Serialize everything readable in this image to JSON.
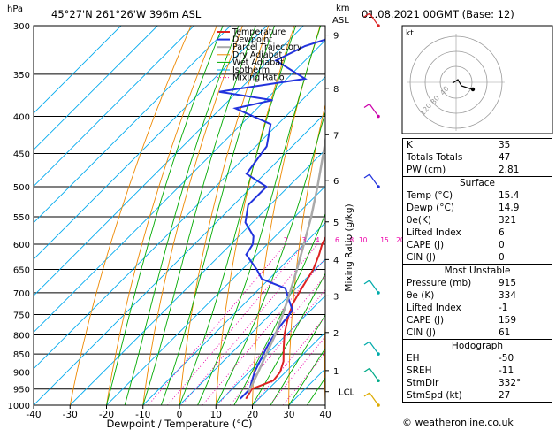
{
  "header": {
    "location": "45°27'N 261°26'W 396m ASL",
    "datetime": "01.08.2021 00GMT (Base: 12)"
  },
  "chart_data": {
    "type": "line",
    "title": "45°27'N 261°26'W 396m ASL",
    "xlabel": "Dewpoint / Temperature (°C)",
    "ylabel": "hPa",
    "ylabel_right": "Mixing Ratio (g/kg)",
    "km_label_top": "km",
    "km_label_bottom": "ASL",
    "xlim": [
      -40,
      40
    ],
    "ylim": [
      1000,
      300
    ],
    "x_ticks": [
      -40,
      -30,
      -20,
      -10,
      0,
      10,
      20,
      30,
      40
    ],
    "pressure_levels": [
      300,
      350,
      400,
      450,
      500,
      550,
      600,
      650,
      700,
      750,
      800,
      850,
      900,
      950,
      1000
    ],
    "km_ticks": [
      {
        "label": "9",
        "p": 309
      },
      {
        "label": "8",
        "p": 366
      },
      {
        "label": "7",
        "p": 424
      },
      {
        "label": "6",
        "p": 490
      },
      {
        "label": "5",
        "p": 559
      },
      {
        "label": "4",
        "p": 630
      },
      {
        "label": "3",
        "p": 707
      },
      {
        "label": "2",
        "p": 794
      },
      {
        "label": "1",
        "p": 896
      },
      {
        "label": "LCL",
        "p": 958
      }
    ],
    "mixing_ratio_labels": [
      "2",
      "3",
      "4",
      "6",
      "8",
      "10",
      "15",
      "20",
      "25"
    ],
    "mixing_ratio_values": [
      2,
      3,
      4,
      6,
      8,
      10,
      15,
      20,
      25
    ],
    "legend": [
      "Temperature",
      "Dewpoint",
      "Parcel Trajectory",
      "Dry Adiabat",
      "Wet Adiabat",
      "Isotherm",
      "Mixing Ratio"
    ],
    "legend_placement": "top-left",
    "series": [
      {
        "name": "Temperature",
        "color": "#dd2222",
        "points": [
          [
            16.5,
            980
          ],
          [
            15.4,
            950
          ],
          [
            19.0,
            925
          ],
          [
            18.5,
            900
          ],
          [
            16.5,
            870
          ],
          [
            13.0,
            835
          ],
          [
            9.5,
            800
          ],
          [
            6.0,
            760
          ],
          [
            3.3,
            725
          ],
          [
            2.0,
            700
          ],
          [
            1.0,
            680
          ],
          [
            -0.5,
            650
          ],
          [
            -3.0,
            620
          ],
          [
            -5.0,
            600
          ],
          [
            -8.0,
            560
          ],
          [
            -12.0,
            520
          ],
          [
            -15.0,
            500
          ],
          [
            -20.0,
            460
          ],
          [
            -26.0,
            420
          ],
          [
            -29.0,
            400
          ],
          [
            -31.0,
            380
          ],
          [
            -35.0,
            360
          ],
          [
            -38.0,
            335
          ],
          [
            -42.0,
            320
          ],
          [
            -44.0,
            300
          ]
        ]
      },
      {
        "name": "Dewpoint",
        "color": "#2233dd",
        "points": [
          [
            14.9,
            980
          ],
          [
            14.9,
            950
          ],
          [
            13.5,
            930
          ],
          [
            11.5,
            900
          ],
          [
            9.5,
            860
          ],
          [
            7.5,
            820
          ],
          [
            6.0,
            780
          ],
          [
            5.0,
            740
          ],
          [
            1.0,
            715
          ],
          [
            -3.0,
            690
          ],
          [
            -12.0,
            670
          ],
          [
            -16.0,
            650
          ],
          [
            -23.0,
            620
          ],
          [
            -24.0,
            600
          ],
          [
            -26.0,
            585
          ],
          [
            -32.0,
            560
          ],
          [
            -36.0,
            530
          ],
          [
            -36.0,
            500
          ],
          [
            -45.0,
            480
          ],
          [
            -47.0,
            440
          ],
          [
            -52.0,
            410
          ],
          [
            -66.0,
            390
          ],
          [
            -58.0,
            380
          ],
          [
            -75.0,
            370
          ],
          [
            -55.0,
            355
          ],
          [
            -68.0,
            335
          ],
          [
            -64.0,
            320
          ],
          [
            -52.0,
            300
          ]
        ]
      },
      {
        "name": "Parcel Trajectory",
        "color": "#aaaaaa",
        "points": [
          [
            15.4,
            960
          ],
          [
            12.5,
            900
          ],
          [
            9.8,
            850
          ],
          [
            7.0,
            800
          ],
          [
            3.5,
            750
          ],
          [
            -0.5,
            700
          ],
          [
            -5.0,
            650
          ],
          [
            -10.0,
            600
          ],
          [
            -15.5,
            550
          ],
          [
            -22.0,
            500
          ],
          [
            -29.5,
            450
          ],
          [
            -38.0,
            400
          ],
          [
            -48.0,
            350
          ],
          [
            -60.0,
            300
          ]
        ]
      }
    ]
  },
  "hodograph": {
    "label": "kt",
    "ring_labels": [
      "40",
      "80",
      "120"
    ]
  },
  "indices": {
    "top": [
      {
        "label": "K",
        "value": "35"
      },
      {
        "label": "Totals Totals",
        "value": "47"
      },
      {
        "label": "PW (cm)",
        "value": "2.81"
      }
    ],
    "surface": {
      "title": "Surface",
      "rows": [
        {
          "label": "Temp (°C)",
          "value": "15.4"
        },
        {
          "label": "Dewp (°C)",
          "value": "14.9"
        },
        {
          "label": "θe(K)",
          "value": "321"
        },
        {
          "label": "Lifted Index",
          "value": "6"
        },
        {
          "label": "CAPE (J)",
          "value": "0"
        },
        {
          "label": "CIN (J)",
          "value": "0"
        }
      ]
    },
    "most_unstable": {
      "title": "Most Unstable",
      "rows": [
        {
          "label": "Pressure (mb)",
          "value": "915"
        },
        {
          "label": "θe (K)",
          "value": "334"
        },
        {
          "label": "Lifted Index",
          "value": "-1"
        },
        {
          "label": "CAPE (J)",
          "value": "159"
        },
        {
          "label": "CIN (J)",
          "value": "61"
        }
      ]
    },
    "hodograph": {
      "title": "Hodograph",
      "rows": [
        {
          "label": "EH",
          "value": "-50"
        },
        {
          "label": "SREH",
          "value": "-11"
        },
        {
          "label": "StmDir",
          "value": "332°"
        },
        {
          "label": "StmSpd (kt)",
          "value": "27"
        }
      ]
    }
  },
  "copyright": "© weatheronline.co.uk",
  "colors": {
    "isotherm": "#00aaee",
    "dry_adiabat": "#ee8800",
    "wet_adiabat": "#00aa00",
    "mixing_ratio": "#ee00aa",
    "temperature": "#dd2222",
    "dewpoint": "#2233dd",
    "parcel": "#aaaaaa"
  }
}
